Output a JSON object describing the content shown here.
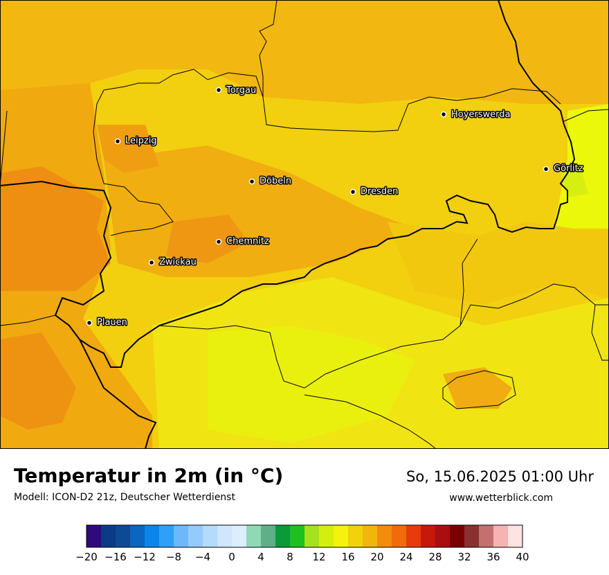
{
  "map": {
    "cities": [
      {
        "name": "Torgau"
      },
      {
        "name": "Hoyerswerda"
      },
      {
        "name": "Leipzig"
      },
      {
        "name": "Görlitz"
      },
      {
        "name": "Döbeln"
      },
      {
        "name": "Dresden"
      },
      {
        "name": "Chemnitz"
      },
      {
        "name": "Zwickau"
      },
      {
        "name": "Plauen"
      }
    ]
  },
  "footer": {
    "title": "Temperatur in 2m (in °C)",
    "subtitle": "Modell: ICON-D2 21z, Deutscher Wetterdienst",
    "datetime": "So, 15.06.2025 01:00 Uhr",
    "website": "www.wetterblick.com"
  },
  "legend": {
    "colors": [
      "#2e0a7a",
      "#0b3a86",
      "#0d4a95",
      "#0a66bf",
      "#0a86ea",
      "#2ea0f6",
      "#6cb8fa",
      "#94cbfb",
      "#b4dafc",
      "#cfe6fd",
      "#dceefe",
      "#8fd9b5",
      "#5fb088",
      "#0b9a3a",
      "#1fbf1f",
      "#a6e01e",
      "#d3ef0f",
      "#f3f30c",
      "#f2d20c",
      "#f2b50c",
      "#f28c0c",
      "#f06c0b",
      "#e83a0a",
      "#c8170c",
      "#a90f0f",
      "#7a0000",
      "#8a3030",
      "#c27070",
      "#f7b3b3",
      "#fde3e3"
    ],
    "ticks": [
      "−20",
      "−16",
      "−12",
      "−8",
      "−4",
      "0",
      "4",
      "8",
      "12",
      "16",
      "20",
      "24",
      "28",
      "32",
      "36",
      "40"
    ]
  }
}
